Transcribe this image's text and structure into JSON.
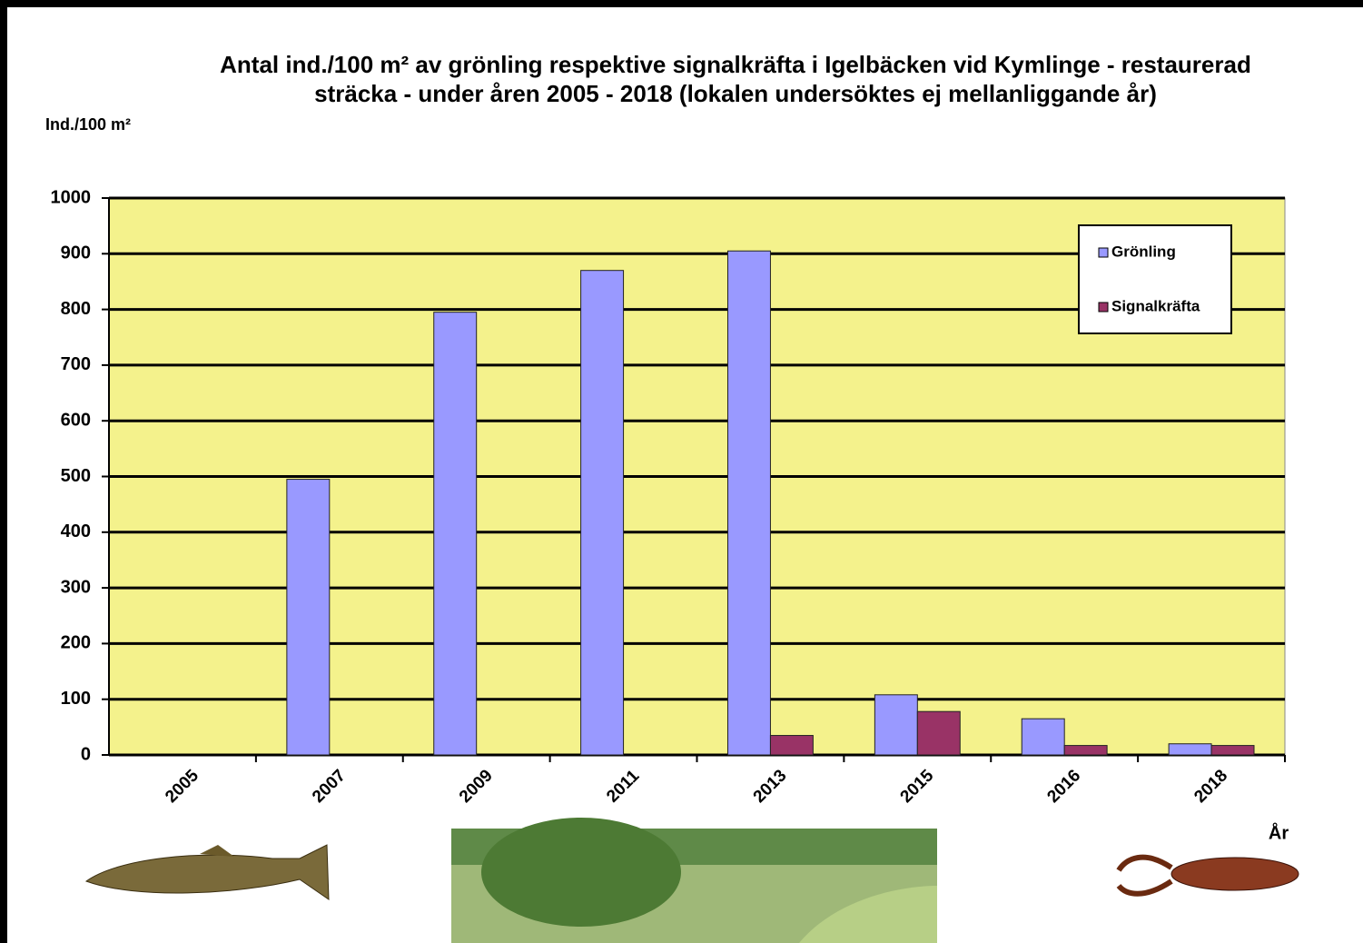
{
  "chart_data": {
    "type": "bar",
    "title": "Antal ind./100 m² av grönling respektive signalkräfta i Igelbäcken vid Kymlinge - restaurerad sträcka - under åren 2005 - 2018 (lokalen undersöktes ej mellanliggande år)",
    "y_label": "Ind./100 m²",
    "x_label": "År",
    "categories": [
      "2005",
      "2007",
      "2009",
      "2011",
      "2013",
      "2015",
      "2016",
      "2018"
    ],
    "series": [
      {
        "name": "Grönling",
        "color": "#9999ff",
        "values": [
          0,
          495,
          795,
          870,
          905,
          108,
          65,
          20
        ]
      },
      {
        "name": "Signalkräfta",
        "color": "#993366",
        "values": [
          0,
          0,
          0,
          0,
          35,
          78,
          17,
          17
        ]
      }
    ],
    "ylim": [
      0,
      1000
    ],
    "yticks": [
      0,
      100,
      200,
      300,
      400,
      500,
      600,
      700,
      800,
      900,
      1000
    ],
    "grid": true,
    "legend": "top-right",
    "plot_background": "#f4f28c"
  }
}
